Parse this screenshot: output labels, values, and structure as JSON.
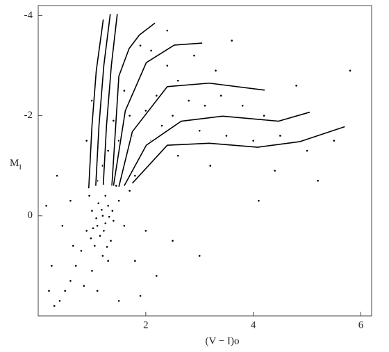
{
  "chart_data": {
    "type": "scatter",
    "xlabel": "(V − I)o",
    "ylabel": [
      "M",
      "I"
    ],
    "xlim": [
      0,
      6.2
    ],
    "ylim": [
      2,
      -4.2
    ],
    "xticks": [
      2,
      4,
      6
    ],
    "yticks": [
      -4,
      -2,
      0
    ],
    "color": "#000000",
    "points": {
      "x": [
        1.2,
        1.1,
        1.3,
        1.0,
        1.4,
        1.15,
        1.25,
        0.9,
        1.5,
        1.05,
        1.35,
        0.8,
        1.6,
        1.2,
        0.95,
        1.45,
        0.7,
        1.0,
        1.3,
        0.6,
        0.5,
        0.4,
        0.85,
        1.1,
        0.3,
        0.65,
        1.7,
        1.8,
        1.6,
        1.9,
        2.1,
        1.75,
        2.3,
        2.0,
        2.5,
        2.2,
        2.8,
        3.1,
        2.6,
        3.4,
        3.8,
        4.2,
        3.0,
        3.5,
        4.0,
        4.5,
        5.0,
        5.5,
        2.4,
        2.9,
        3.3,
        2.1,
        1.9,
        1.6,
        1.4,
        1.3,
        1.5,
        1.2,
        1.1,
        1.7,
        2.6,
        3.2,
        4.4,
        5.2,
        0.2,
        0.25,
        0.45,
        0.6,
        0.15,
        0.35,
        2.5,
        2.0,
        1.8,
        2.2,
        1.5,
        1.9,
        3.0,
        4.1,
        3.6,
        4.8,
        5.8,
        2.4,
        1.9,
        1.0,
        0.9,
        1.25,
        1.18,
        1.08,
        1.32,
        1.22,
        1.12,
        1.38,
        1.02,
        0.98,
        1.28
      ],
      "y": [
        0.0,
        0.2,
        -0.2,
        -0.1,
        0.1,
        0.4,
        -0.4,
        0.3,
        -0.3,
        0.6,
        0.5,
        0.7,
        0.2,
        0.8,
        -0.4,
        -0.6,
        1.0,
        1.1,
        0.9,
        1.3,
        1.5,
        1.7,
        1.4,
        1.5,
        1.8,
        0.6,
        -0.5,
        -0.8,
        -1.0,
        -1.2,
        -1.5,
        -1.6,
        -1.8,
        -2.1,
        -2.0,
        -2.4,
        -2.3,
        -2.2,
        -2.7,
        -2.4,
        -2.2,
        -2.0,
        -1.7,
        -1.6,
        -1.5,
        -1.6,
        -1.3,
        -1.5,
        -3.0,
        -3.2,
        -2.9,
        -3.3,
        -2.8,
        -2.5,
        -1.9,
        -1.3,
        -1.5,
        -1.0,
        -0.7,
        -2.0,
        -1.2,
        -1.0,
        -0.9,
        -0.7,
        1.5,
        1.0,
        0.2,
        -0.3,
        -0.2,
        -0.8,
        0.5,
        0.3,
        0.9,
        1.2,
        1.7,
        1.6,
        0.8,
        -0.3,
        -3.5,
        -2.6,
        -2.9,
        -3.7,
        -3.4,
        -2.3,
        -1.5,
        0.15,
        -0.12,
        0.05,
        0.02,
        0.3,
        -0.25,
        -0.1,
        0.25,
        0.45,
        0.62
      ]
    },
    "tracks": [
      {
        "x": [
          0.94,
          1.0,
          1.08,
          1.21
        ],
        "y": [
          -0.55,
          -1.8,
          -2.9,
          -3.92
        ]
      },
      {
        "x": [
          1.07,
          1.13,
          1.22,
          1.34
        ],
        "y": [
          -0.6,
          -1.8,
          -3.0,
          -4.03
        ]
      },
      {
        "x": [
          1.21,
          1.27,
          1.36,
          1.47
        ],
        "y": [
          -0.62,
          -1.8,
          -3.0,
          -4.03
        ]
      },
      {
        "x": [
          1.37,
          1.5,
          1.69,
          1.88,
          2.17
        ],
        "y": [
          -0.6,
          -2.79,
          -3.34,
          -3.61,
          -3.85
        ]
      },
      {
        "x": [
          1.4,
          1.62,
          2.01,
          2.53,
          3.05
        ],
        "y": [
          -0.6,
          -2.1,
          -3.06,
          -3.41,
          -3.45
        ]
      },
      {
        "x": [
          1.5,
          1.75,
          2.4,
          3.18,
          4.21
        ],
        "y": [
          -0.58,
          -1.68,
          -2.58,
          -2.65,
          -2.51
        ]
      },
      {
        "x": [
          1.6,
          2.01,
          2.66,
          3.43,
          4.47,
          5.05
        ],
        "y": [
          -0.6,
          -1.41,
          -1.89,
          -1.99,
          -1.89,
          -2.07
        ]
      },
      {
        "x": [
          1.75,
          2.4,
          3.18,
          4.08,
          4.86,
          5.7
        ],
        "y": [
          -0.65,
          -1.41,
          -1.45,
          -1.37,
          -1.48,
          -1.78
        ]
      }
    ]
  }
}
